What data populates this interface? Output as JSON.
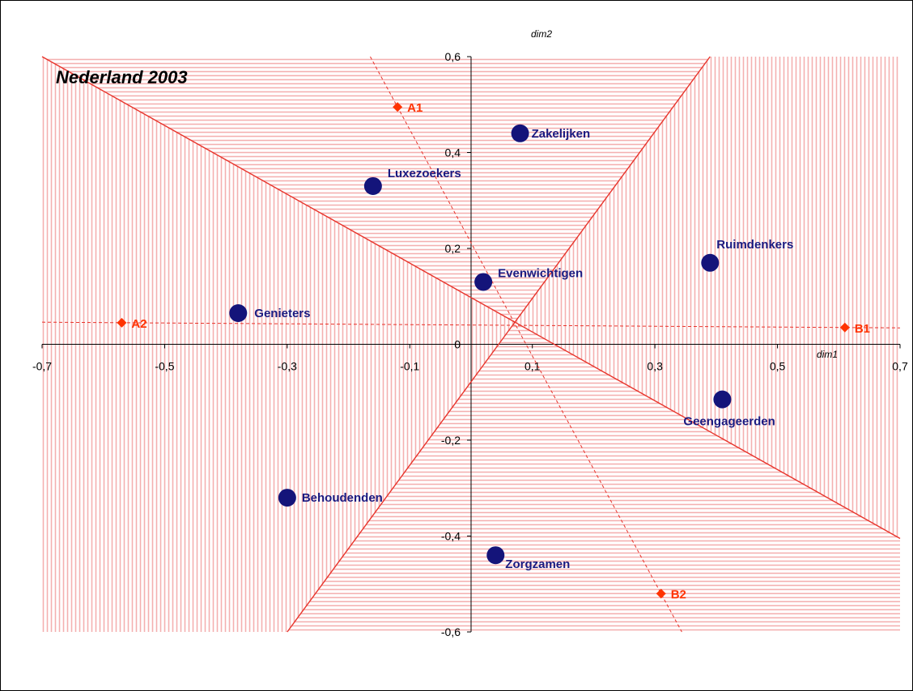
{
  "chart_data": {
    "type": "scatter",
    "title": "Nederland 2003",
    "xlabel": "dim1",
    "ylabel": "dim2",
    "xlim": [
      -0.7,
      0.7
    ],
    "ylim": [
      -0.6,
      0.6
    ],
    "x_ticks": [
      "-0,7",
      "-0,5",
      "-0,3",
      "-0,1",
      "0,1",
      "0,3",
      "0,5",
      "0,7"
    ],
    "y_ticks": [
      "0,6",
      "0,4",
      "0,2",
      "0",
      "-0,2",
      "-0,4",
      "-0,6"
    ],
    "segments": [
      {
        "name": "Zakelijken",
        "x": 0.08,
        "y": 0.44
      },
      {
        "name": "Luxezoekers",
        "x": -0.16,
        "y": 0.33
      },
      {
        "name": "Ruimdenkers",
        "x": 0.39,
        "y": 0.17
      },
      {
        "name": "Evenwichtigen",
        "x": 0.02,
        "y": 0.13
      },
      {
        "name": "Genieters",
        "x": -0.38,
        "y": 0.065
      },
      {
        "name": "Geengageerden",
        "x": 0.41,
        "y": -0.115
      },
      {
        "name": "Behoudenden",
        "x": -0.3,
        "y": -0.32
      },
      {
        "name": "Zorgzamen",
        "x": 0.04,
        "y": -0.44
      }
    ],
    "reference_points": [
      {
        "name": "A1",
        "x": -0.12,
        "y": 0.495
      },
      {
        "name": "A2",
        "x": -0.57,
        "y": 0.045
      },
      {
        "name": "B1",
        "x": 0.61,
        "y": 0.035
      },
      {
        "name": "B2",
        "x": 0.31,
        "y": -0.52
      }
    ],
    "dashed_lines": [
      {
        "from": "A1",
        "to": "B2"
      },
      {
        "from": "A2",
        "to": "B1"
      }
    ],
    "solid_lines": [
      {
        "x1": -0.7,
        "y1": 0.6,
        "x2": 0.7,
        "y2": -0.405
      },
      {
        "x1": -0.3,
        "y1": -0.6,
        "x2": 0.39,
        "y2": 0.6
      }
    ],
    "colors": {
      "segment_marker": "#14147a",
      "segment_label": "#1a1a80",
      "reference_marker": "#ff3300",
      "lines": "#e8332a",
      "hatch": "#f5b5b5"
    }
  }
}
